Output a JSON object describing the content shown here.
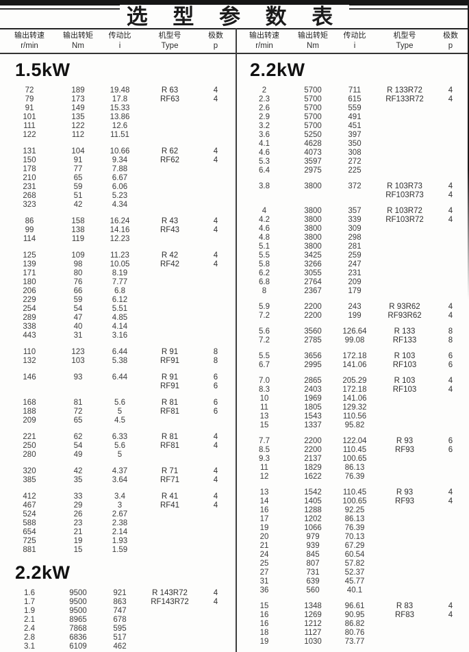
{
  "title": "选 型 参 数 表",
  "colors": {
    "rule": "#2e2e2e",
    "text": "#3a3a3a",
    "heading": "#111111",
    "background": "#fdfdfc"
  },
  "table": {
    "columns": [
      {
        "key": "speed",
        "label": "输出转速",
        "unit": "r/min"
      },
      {
        "key": "torque",
        "label": "输出转矩",
        "unit": "Nm"
      },
      {
        "key": "ratio",
        "label": "传动比",
        "unit": "i"
      },
      {
        "key": "type",
        "label": "机型号",
        "unit": "Type"
      },
      {
        "key": "poles",
        "label": "极数",
        "unit": "p"
      }
    ],
    "left": {
      "sections": [
        {
          "heading": "1.5kW",
          "blocks": [
            [
              [
                "72",
                "189",
                "19.48",
                "R 63",
                "4"
              ],
              [
                "79",
                "173",
                "17.8",
                "RF63",
                "4"
              ],
              [
                "91",
                "149",
                "15.33",
                "",
                ""
              ],
              [
                "101",
                "135",
                "13.86",
                "",
                ""
              ],
              [
                "111",
                "122",
                "12.6",
                "",
                ""
              ],
              [
                "122",
                "112",
                "11.51",
                "",
                ""
              ]
            ],
            [
              [
                "131",
                "104",
                "10.66",
                "R 62",
                "4"
              ],
              [
                "150",
                "91",
                "9.34",
                "RF62",
                "4"
              ],
              [
                "178",
                "77",
                "7.88",
                "",
                ""
              ],
              [
                "210",
                "65",
                "6.67",
                "",
                ""
              ],
              [
                "231",
                "59",
                "6.06",
                "",
                ""
              ],
              [
                "268",
                "51",
                "5.23",
                "",
                ""
              ],
              [
                "323",
                "42",
                "4.34",
                "",
                ""
              ]
            ],
            [
              [
                "86",
                "158",
                "16.24",
                "R 43",
                "4"
              ],
              [
                "99",
                "138",
                "14.16",
                "RF43",
                "4"
              ],
              [
                "114",
                "119",
                "12.23",
                "",
                ""
              ]
            ],
            [
              [
                "125",
                "109",
                "11.23",
                "R 42",
                "4"
              ],
              [
                "139",
                "98",
                "10.05",
                "RF42",
                "4"
              ],
              [
                "171",
                "80",
                "8.19",
                "",
                ""
              ],
              [
                "180",
                "76",
                "7.77",
                "",
                ""
              ],
              [
                "206",
                "66",
                "6.8",
                "",
                ""
              ],
              [
                "229",
                "59",
                "6.12",
                "",
                ""
              ],
              [
                "254",
                "54",
                "5.51",
                "",
                ""
              ],
              [
                "289",
                "47",
                "4.85",
                "",
                ""
              ],
              [
                "338",
                "40",
                "4.14",
                "",
                ""
              ],
              [
                "443",
                "31",
                "3.16",
                "",
                ""
              ]
            ],
            [
              [
                "110",
                "123",
                "6.44",
                "R 91",
                "8"
              ],
              [
                "132",
                "103",
                "5.38",
                "RF91",
                "8"
              ]
            ],
            [
              [
                "146",
                "93",
                "6.44",
                "R 91",
                "6"
              ],
              [
                "",
                "",
                "",
                "RF91",
                "6"
              ]
            ],
            [
              [
                "168",
                "81",
                "5.6",
                "R 81",
                "6"
              ],
              [
                "188",
                "72",
                "5",
                "RF81",
                "6"
              ],
              [
                "209",
                "65",
                "4.5",
                "",
                ""
              ]
            ],
            [
              [
                "221",
                "62",
                "6.33",
                "R 81",
                "4"
              ],
              [
                "250",
                "54",
                "5.6",
                "RF81",
                "4"
              ],
              [
                "280",
                "49",
                "5",
                "",
                ""
              ]
            ],
            [
              [
                "320",
                "42",
                "4.37",
                "R 71",
                "4"
              ],
              [
                "385",
                "35",
                "3.64",
                "RF71",
                "4"
              ]
            ],
            [
              [
                "412",
                "33",
                "3.4",
                "R 41",
                "4"
              ],
              [
                "467",
                "29",
                "3",
                "RF41",
                "4"
              ],
              [
                "524",
                "26",
                "2.67",
                "",
                ""
              ],
              [
                "588",
                "23",
                "2.38",
                "",
                ""
              ],
              [
                "654",
                "21",
                "2.14",
                "",
                ""
              ],
              [
                "725",
                "19",
                "1.93",
                "",
                ""
              ],
              [
                "881",
                "15",
                "1.59",
                "",
                ""
              ]
            ]
          ]
        },
        {
          "heading": "2.2kW",
          "blocks": [
            [
              [
                "1.6",
                "9500",
                "921",
                "R 143R72",
                "4"
              ],
              [
                "1.7",
                "9500",
                "863",
                "RF143R72",
                "4"
              ],
              [
                "1.9",
                "9500",
                "747",
                "",
                ""
              ],
              [
                "2.1",
                "8965",
                "678",
                "",
                ""
              ],
              [
                "2.4",
                "7868",
                "595",
                "",
                ""
              ],
              [
                "2.8",
                "6836",
                "517",
                "",
                ""
              ],
              [
                "3.1",
                "6109",
                "462",
                "",
                ""
              ]
            ]
          ]
        }
      ]
    },
    "right": {
      "sections": [
        {
          "heading": "2.2kW",
          "blocks": [
            [
              [
                "2",
                "5700",
                "711",
                "R 133R72",
                "4"
              ],
              [
                "2.3",
                "5700",
                "615",
                "RF133R72",
                "4"
              ],
              [
                "2.6",
                "5700",
                "559",
                "",
                ""
              ],
              [
                "2.9",
                "5700",
                "491",
                "",
                ""
              ],
              [
                "3.2",
                "5700",
                "451",
                "",
                ""
              ],
              [
                "3.6",
                "5250",
                "397",
                "",
                ""
              ],
              [
                "4.1",
                "4628",
                "350",
                "",
                ""
              ],
              [
                "4.6",
                "4073",
                "308",
                "",
                ""
              ],
              [
                "5.3",
                "3597",
                "272",
                "",
                ""
              ],
              [
                "6.4",
                "2975",
                "225",
                "",
                ""
              ]
            ],
            [
              [
                "3.8",
                "3800",
                "372",
                "R 103R73",
                "4"
              ],
              [
                "",
                "",
                "",
                "RF103R73",
                "4"
              ]
            ],
            [
              [
                "4",
                "3800",
                "357",
                "R 103R72",
                "4"
              ],
              [
                "4.2",
                "3800",
                "339",
                "RF103R72",
                "4"
              ],
              [
                "4.6",
                "3800",
                "309",
                "",
                ""
              ],
              [
                "4.8",
                "3800",
                "298",
                "",
                ""
              ],
              [
                "5.1",
                "3800",
                "281",
                "",
                ""
              ],
              [
                "5.5",
                "3425",
                "259",
                "",
                ""
              ],
              [
                "5.8",
                "3266",
                "247",
                "",
                ""
              ],
              [
                "6.2",
                "3055",
                "231",
                "",
                ""
              ],
              [
                "6.8",
                "2764",
                "209",
                "",
                ""
              ],
              [
                "8",
                "2367",
                "179",
                "",
                ""
              ]
            ],
            [
              [
                "5.9",
                "2200",
                "243",
                "R 93R62",
                "4"
              ],
              [
                "7.2",
                "2200",
                "199",
                "RF93R62",
                "4"
              ]
            ],
            [
              [
                "5.6",
                "3560",
                "126.64",
                "R 133",
                "8"
              ],
              [
                "7.2",
                "2785",
                "99.08",
                "RF133",
                "8"
              ]
            ],
            [
              [
                "5.5",
                "3656",
                "172.18",
                "R 103",
                "6"
              ],
              [
                "6.7",
                "2995",
                "141.06",
                "RF103",
                "6"
              ]
            ],
            [
              [
                "7.0",
                "2865",
                "205.29",
                "R 103",
                "4"
              ],
              [
                "8.3",
                "2403",
                "172.18",
                "RF103",
                "4"
              ],
              [
                "10",
                "1969",
                "141.06",
                "",
                ""
              ],
              [
                "11",
                "1805",
                "129.32",
                "",
                ""
              ],
              [
                "13",
                "1543",
                "110.56",
                "",
                ""
              ],
              [
                "15",
                "1337",
                "95.82",
                "",
                ""
              ]
            ],
            [
              [
                "7.7",
                "2200",
                "122.04",
                "R 93",
                "6"
              ],
              [
                "8.5",
                "2200",
                "110.45",
                "RF93",
                "6"
              ],
              [
                "9.3",
                "2137",
                "100.65",
                "",
                ""
              ],
              [
                "11",
                "1829",
                "86.13",
                "",
                ""
              ],
              [
                "12",
                "1622",
                "76.39",
                "",
                ""
              ]
            ],
            [
              [
                "13",
                "1542",
                "110.45",
                "R 93",
                "4"
              ],
              [
                "14",
                "1405",
                "100.65",
                "RF93",
                "4"
              ],
              [
                "16",
                "1288",
                "92.25",
                "",
                ""
              ],
              [
                "17",
                "1202",
                "86.13",
                "",
                ""
              ],
              [
                "19",
                "1066",
                "76.39",
                "",
                ""
              ],
              [
                "20",
                "979",
                "70.13",
                "",
                ""
              ],
              [
                "21",
                "939",
                "67.29",
                "",
                ""
              ],
              [
                "24",
                "845",
                "60.54",
                "",
                ""
              ],
              [
                "25",
                "807",
                "57.82",
                "",
                ""
              ],
              [
                "27",
                "731",
                "52.37",
                "",
                ""
              ],
              [
                "31",
                "639",
                "45.77",
                "",
                ""
              ],
              [
                "36",
                "560",
                "40.1",
                "",
                ""
              ]
            ],
            [
              [
                "15",
                "1348",
                "96.61",
                "R 83",
                "4"
              ],
              [
                "16",
                "1269",
                "90.95",
                "RF83",
                "4"
              ],
              [
                "16",
                "1212",
                "86.82",
                "",
                ""
              ],
              [
                "18",
                "1127",
                "80.76",
                "",
                ""
              ],
              [
                "19",
                "1030",
                "73.77",
                "",
                ""
              ]
            ]
          ]
        }
      ]
    }
  }
}
